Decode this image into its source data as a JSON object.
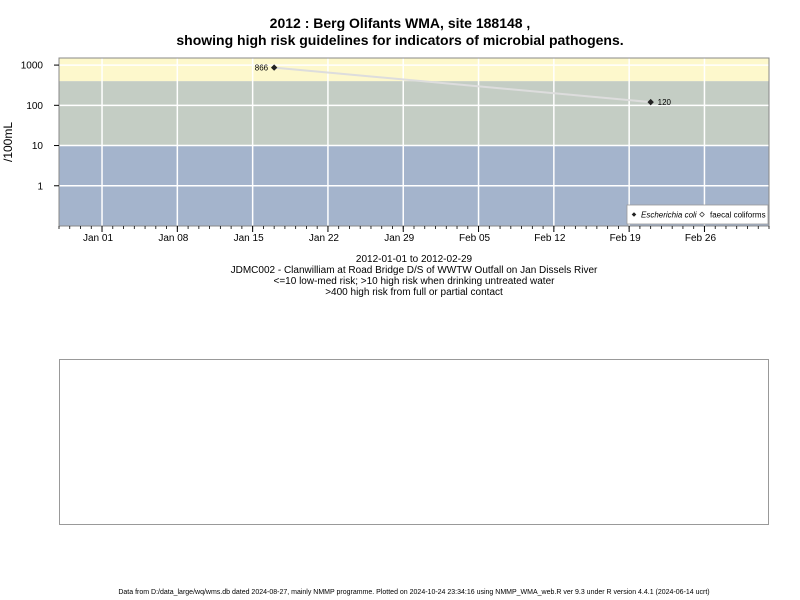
{
  "chart_data": {
    "type": "scatter",
    "title": "2012 : Berg Olifants WMA, site 188148 ,",
    "subtitle": "showing high risk guidelines for indicators of microbial pathogens.",
    "xlabel": "",
    "ylabel": "/100mL",
    "y_scale": "log",
    "ylim": [
      0.1,
      1500
    ],
    "y_ticks": [
      1,
      10,
      100,
      1000
    ],
    "y_tick_labels": [
      "1",
      "10",
      "100",
      "1000"
    ],
    "xlim": [
      "2011-12-28",
      "2012-03-03"
    ],
    "x_ticks": [
      "2012-01-01",
      "2012-01-08",
      "2012-01-15",
      "2012-01-22",
      "2012-01-29",
      "2012-02-05",
      "2012-02-12",
      "2012-02-19",
      "2012-02-26"
    ],
    "x_tick_labels": [
      "Jan 01",
      "Jan 08",
      "Jan 15",
      "Jan 22",
      "Jan 29",
      "Feb 05",
      "Feb 12",
      "Feb 19",
      "Feb 26"
    ],
    "grid": true,
    "bands": [
      {
        "from": 0.1,
        "to": 10,
        "color": "#a4b4cc"
      },
      {
        "from": 10,
        "to": 400,
        "color": "#c4cdc4"
      },
      {
        "from": 400,
        "to": 1500,
        "color": "#fdf8cc"
      }
    ],
    "series": [
      {
        "name": "Escherichia coli",
        "marker": "filled-diamond",
        "color": "#222222",
        "line_color": "#dddddd",
        "x": [
          "2012-01-17",
          "2012-02-21"
        ],
        "y": [
          866,
          120
        ],
        "labels": [
          "866",
          "120"
        ]
      },
      {
        "name": "faecal coliforms",
        "marker": "open-diamond",
        "color": "#444444",
        "x": [],
        "y": []
      }
    ],
    "legend_position": "bottom-right"
  },
  "captions": {
    "range": "2012-01-01 to 2012-02-29",
    "site": "JDMC002 - Clanwilliam at Road Bridge D/S of WWTW Outfall on Jan Dissels River",
    "guideline1": "<=10 low-med risk; >10 high risk when drinking untreated water",
    "guideline2": ">400 high risk from full or partial contact"
  },
  "footer": "Data from D:/data_large/wq/wms.db dated 2024-08-27, mainly NMMP programme. Plotted on 2024-10-24 23:34:16 using NMMP_WMA_web.R ver 9.3 under R version 4.4.1 (2024-06-14 ucrt)"
}
